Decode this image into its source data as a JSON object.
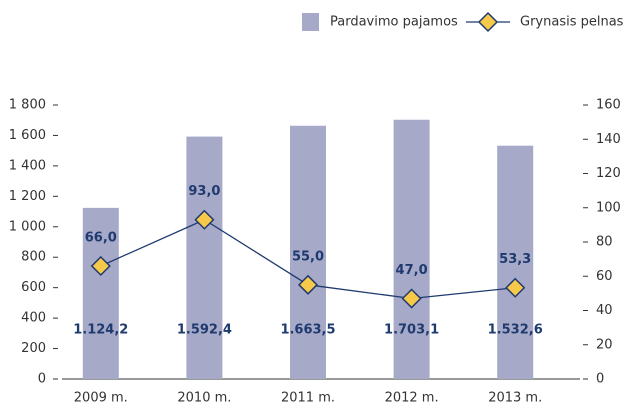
{
  "chart_data": {
    "type": "bar_line",
    "categories": [
      "2009 m.",
      "2010 m.",
      "2011 m.",
      "2012 m.",
      "2013 m."
    ],
    "series": [
      {
        "name": "Pardavimo pajamos",
        "type": "bar",
        "color": "#a6a9c8",
        "values": [
          1124.2,
          1592.4,
          1663.5,
          1703.1,
          1532.6
        ],
        "value_labels": [
          "1.124,2",
          "1.592,4",
          "1.663,5",
          "1.703,1",
          "1.532,6"
        ]
      },
      {
        "name": "Grynasis pelnas",
        "type": "line",
        "axis": "y2",
        "color": "#1f3a6e",
        "marker_color": "#f7c948",
        "values": [
          66.0,
          93.0,
          55.0,
          47.0,
          53.3
        ],
        "value_labels": [
          "66,0",
          "93,0",
          "55,0",
          "47,0",
          "53,3"
        ]
      }
    ],
    "ylim": [
      0,
      1800
    ],
    "yticks": [
      0,
      200,
      400,
      600,
      800,
      {
        "value": 1000,
        "label": "1 000"
      },
      {
        "value": 1200,
        "label": "1 200"
      },
      {
        "value": 1400,
        "label": "1 400"
      },
      {
        "value": 1600,
        "label": "1 600"
      },
      {
        "value": 1800,
        "label": "1 800"
      }
    ],
    "y2lim": [
      0,
      160
    ],
    "y2ticks": [
      0,
      20,
      40,
      60,
      80,
      100,
      120,
      140,
      160
    ],
    "legend": "top-right",
    "grid": false
  }
}
